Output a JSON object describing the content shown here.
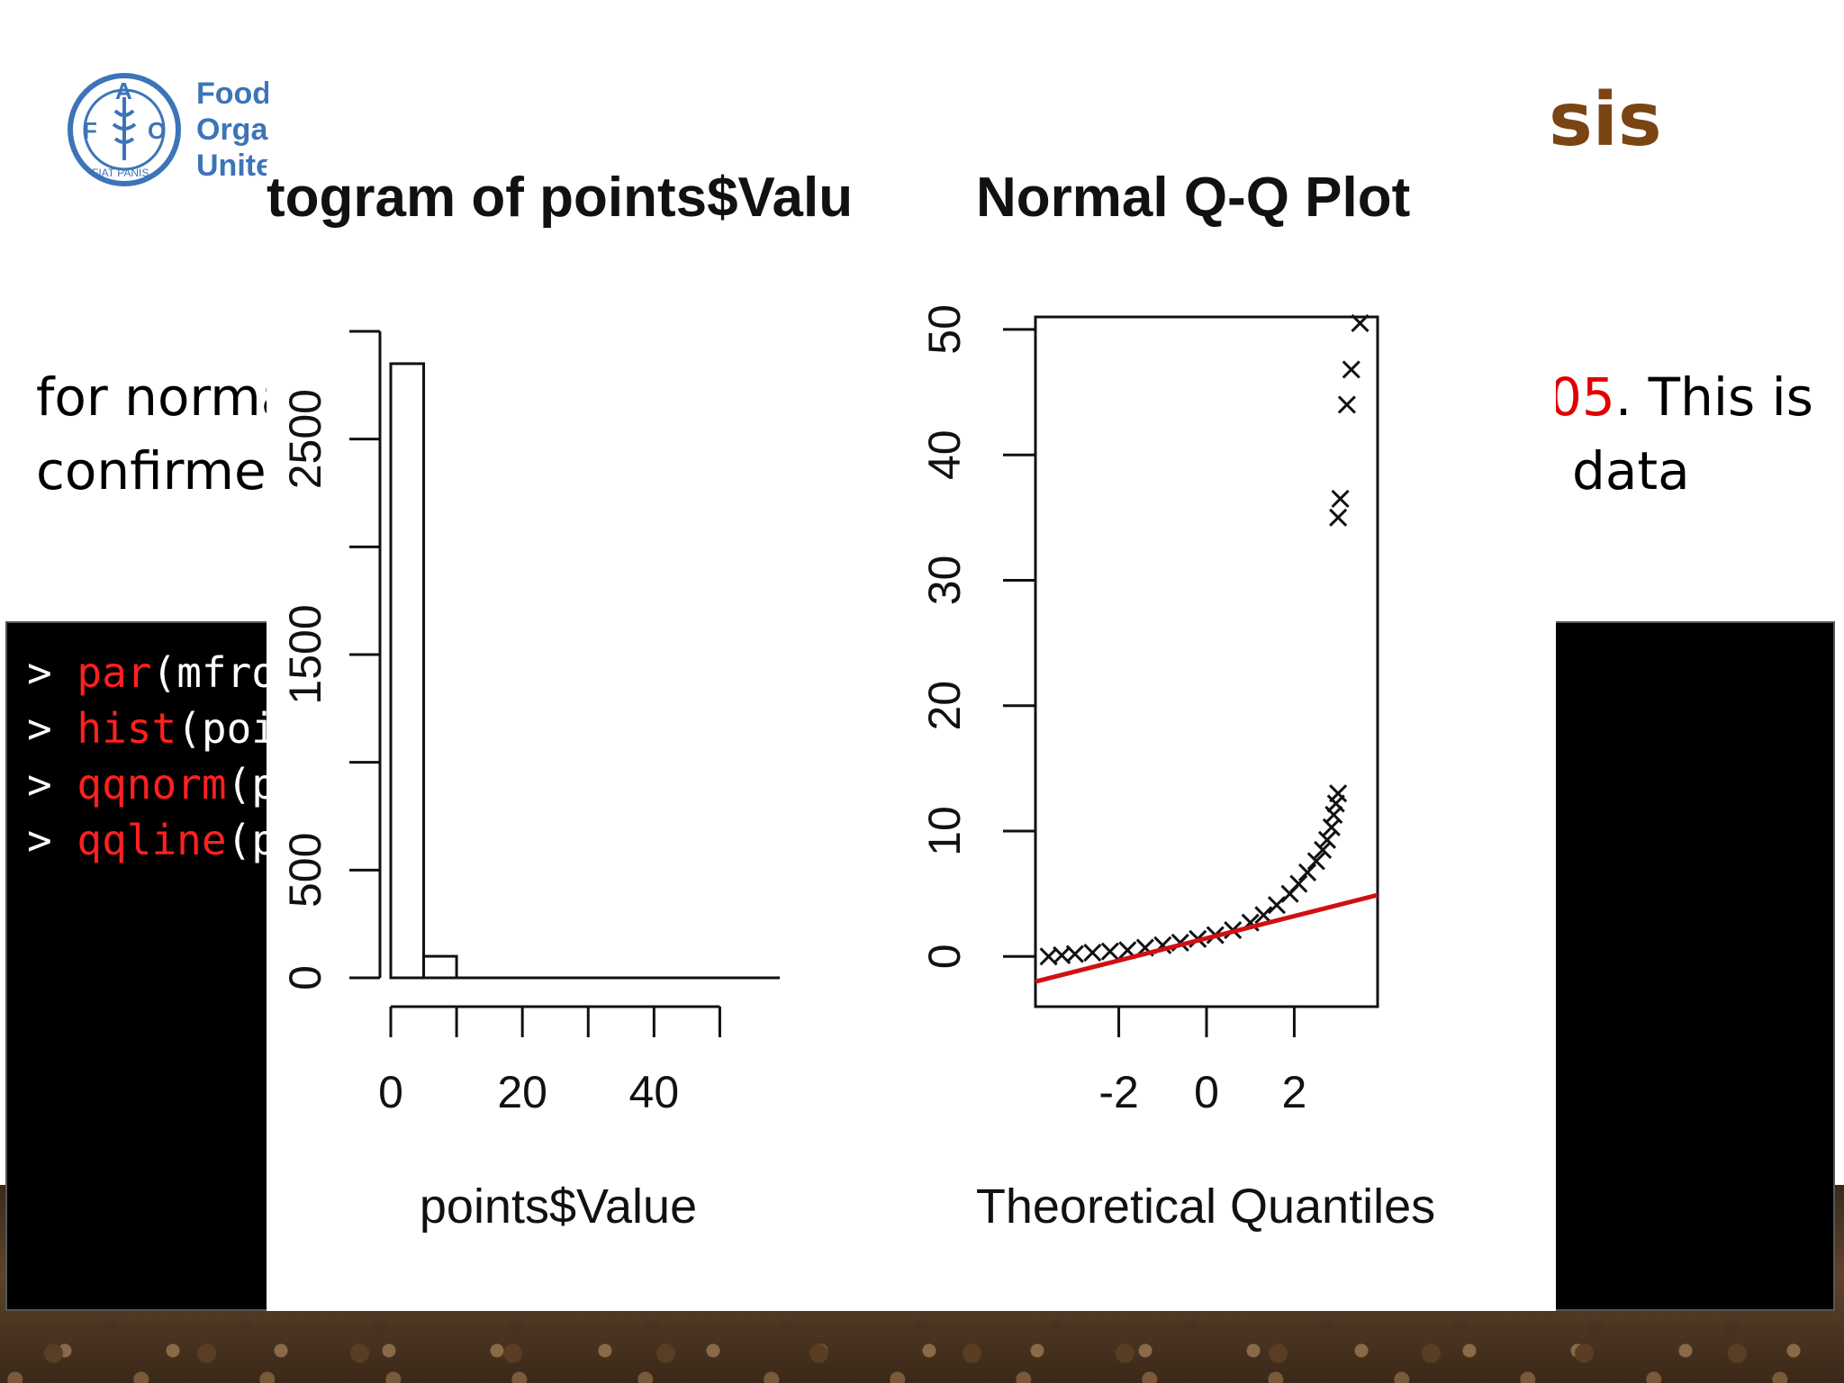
{
  "logo": {
    "letters": [
      "F",
      "A",
      "O"
    ],
    "ring_text": "FIAT PANIS",
    "text_lines": [
      "Food",
      "Organ",
      "Unite"
    ]
  },
  "slide": {
    "title_fragment": "sis",
    "line1_left": "for norma",
    "line1_right_red": "05",
    "line1_right": ". This is",
    "line2_left": "confirme",
    "line2_right": "data"
  },
  "console": {
    "prompt": ">",
    "lines": [
      {
        "fn": "par",
        "rest": "(mfro"
      },
      {
        "fn": "hist",
        "rest": "(poi"
      },
      {
        "fn": "qqnorm",
        "rest": "(p"
      },
      {
        "fn": "qqline",
        "rest": "(p"
      }
    ]
  },
  "colors": {
    "title": "#7b4413",
    "logo": "#3d74b8",
    "code_function": "#ff2020",
    "qqline": "#d01010"
  },
  "chart_data": [
    {
      "type": "bar",
      "title": "togram of points$Valu",
      "xlabel": "points$Value",
      "ylabel": "",
      "bin_edges": [
        0,
        5,
        10
      ],
      "values": [
        2850,
        100
      ],
      "x_ticks": [
        0,
        10,
        20,
        30,
        40,
        50
      ],
      "x_tick_labels": [
        "0",
        "20",
        "40"
      ],
      "y_ticks": [
        0,
        500,
        1000,
        1500,
        2000,
        2500,
        3000
      ],
      "y_tick_labels": [
        "0",
        "500",
        "1500",
        "2500"
      ],
      "xlim": [
        0,
        55
      ],
      "ylim": [
        0,
        3000
      ]
    },
    {
      "type": "scatter",
      "title": "Normal Q-Q Plot",
      "xlabel": "Theoretical Quantiles",
      "ylabel": "",
      "xlim": [
        -3.9,
        3.9
      ],
      "ylim": [
        -4,
        51
      ],
      "x_ticks": [
        -2,
        0,
        2
      ],
      "x_tick_labels": [
        "-2",
        "0",
        "2"
      ],
      "y_ticks": [
        0,
        10,
        20,
        30,
        40,
        50
      ],
      "y_tick_labels": [
        "0",
        "10",
        "20",
        "30",
        "40",
        "50"
      ],
      "points": [
        [
          -3.6,
          0.0
        ],
        [
          -3.3,
          0.1
        ],
        [
          -3.0,
          0.2
        ],
        [
          -2.6,
          0.3
        ],
        [
          -2.2,
          0.4
        ],
        [
          -1.8,
          0.5
        ],
        [
          -1.4,
          0.7
        ],
        [
          -1.0,
          0.9
        ],
        [
          -0.6,
          1.1
        ],
        [
          -0.2,
          1.4
        ],
        [
          0.2,
          1.7
        ],
        [
          0.6,
          2.1
        ],
        [
          1.0,
          2.7
        ],
        [
          1.3,
          3.3
        ],
        [
          1.6,
          4.1
        ],
        [
          1.9,
          5.0
        ],
        [
          2.1,
          5.8
        ],
        [
          2.3,
          6.7
        ],
        [
          2.5,
          7.6
        ],
        [
          2.65,
          8.5
        ],
        [
          2.75,
          9.3
        ],
        [
          2.85,
          10.3
        ],
        [
          2.9,
          11.3
        ],
        [
          2.95,
          12.2
        ],
        [
          3.0,
          13.0
        ],
        [
          3.0,
          35.0
        ],
        [
          3.05,
          36.5
        ],
        [
          3.2,
          44.0
        ],
        [
          3.3,
          46.8
        ],
        [
          3.5,
          50.5
        ]
      ],
      "qqline": {
        "x": [
          -3.9,
          3.9
        ],
        "y": [
          -2.0,
          4.9
        ]
      }
    }
  ]
}
